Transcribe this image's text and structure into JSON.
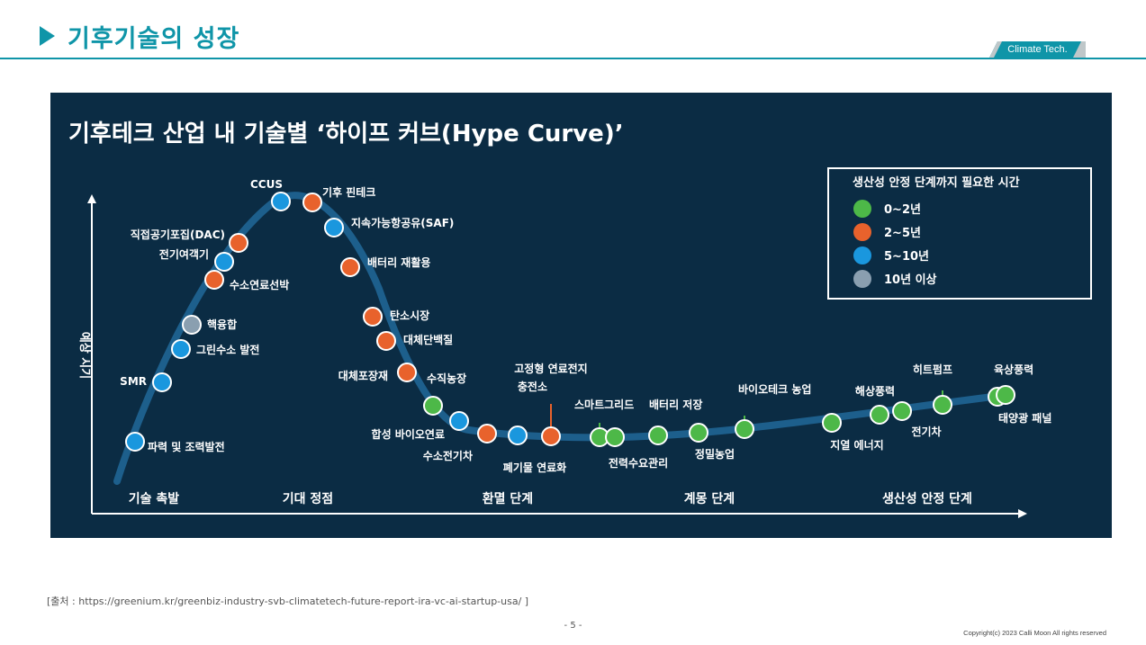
{
  "slide": {
    "title": "기후기술의 성장",
    "tag": "Climate Tech.",
    "source": "[출처  : https://greenium.kr/greenbiz-industry-svb-climatetech-future-report-ira-vc-ai-startup-usa/ ]",
    "page_number": "- 5 -",
    "copyright": "Copyright(c) 2023 Calli Moon All rights reserved"
  },
  "chart": {
    "title": "기후테크 산업 내 기술별 ‘하이프 커브(Hype Curve)’",
    "y_axis_label": "예상 시기",
    "phases": [
      "기술 촉발",
      "기대 정점",
      "환멸 단계",
      "계몽 단계",
      "생산성 안정 단계"
    ],
    "legend": {
      "title": "생산성 안정 단계까지 필요한 시간",
      "items": [
        {
          "label": "0~2년",
          "color": "#4db848"
        },
        {
          "label": "2~5년",
          "color": "#e8622c"
        },
        {
          "label": "5~10년",
          "color": "#1a97de"
        },
        {
          "label": "10년 이상",
          "color": "#8a9fb0"
        }
      ]
    },
    "technologies": [
      {
        "name": "파력 및 조력발전",
        "category": "5~10년"
      },
      {
        "name": "SMR",
        "category": "5~10년"
      },
      {
        "name": "그린수소 발전",
        "category": "5~10년"
      },
      {
        "name": "핵융합",
        "category": "10년 이상"
      },
      {
        "name": "수소연료선박",
        "category": "2~5년"
      },
      {
        "name": "전기여객기",
        "category": "5~10년"
      },
      {
        "name": "직접공기포집(DAC)",
        "category": "2~5년"
      },
      {
        "name": "CCUS",
        "category": "5~10년"
      },
      {
        "name": "기후 핀테크",
        "category": "2~5년"
      },
      {
        "name": "지속가능항공유(SAF)",
        "category": "5~10년"
      },
      {
        "name": "배터리 재활용",
        "category": "2~5년"
      },
      {
        "name": "탄소시장",
        "category": "2~5년"
      },
      {
        "name": "대체단백질",
        "category": "2~5년"
      },
      {
        "name": "대체포장재",
        "category": "2~5년"
      },
      {
        "name": "수직농장",
        "category": "0~2년"
      },
      {
        "name": "합성 바이오연료",
        "category": "5~10년"
      },
      {
        "name": "수소전기차",
        "category": "2~5년"
      },
      {
        "name": "폐기물 연료화",
        "category": "5~10년"
      },
      {
        "name": "고정형 연료전지 충전소",
        "category": "2~5년"
      },
      {
        "name": "스마트그리드",
        "category": "0~2년"
      },
      {
        "name": "전력수요관리",
        "category": "0~2년"
      },
      {
        "name": "배터리 저장",
        "category": "0~2년"
      },
      {
        "name": "정밀농업",
        "category": "0~2년"
      },
      {
        "name": "바이오테크 농업",
        "category": "0~2년"
      },
      {
        "name": "지열 에너지",
        "category": "0~2년"
      },
      {
        "name": "해상풍력",
        "category": "0~2년"
      },
      {
        "name": "전기차",
        "category": "0~2년"
      },
      {
        "name": "히트펌프",
        "category": "0~2년"
      },
      {
        "name": "육상풍력",
        "category": "0~2년"
      },
      {
        "name": "태양광 패널",
        "category": "0~2년"
      }
    ]
  }
}
